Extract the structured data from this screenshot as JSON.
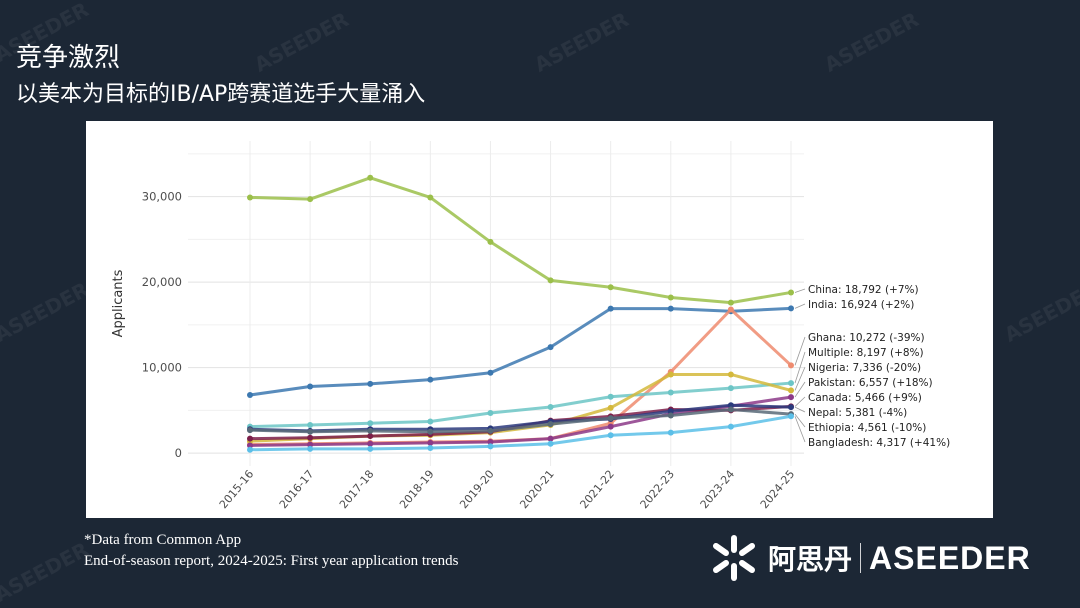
{
  "slide": {
    "title": "竞争激烈",
    "subtitle": "以美本为目标的IB/AP跨赛道选手大量涌入"
  },
  "footnote": {
    "line1": "*Data from Common App",
    "line2": " End-of-season report, 2024-2025: First year application trends"
  },
  "brand": {
    "name_cn": "阿思丹",
    "name_en": "ASEEDER",
    "logo_icon": "asterisk-burst-icon"
  },
  "colors": {
    "background": "#1c2735",
    "panel": "#ffffff",
    "grid": "#e6e6e6",
    "axis_text": "#4d4d4d"
  },
  "chart_data": {
    "type": "line",
    "ylabel": "Applicants",
    "xlabel": "",
    "ylim": [
      -1500,
      36500
    ],
    "yticks": [
      0,
      10000,
      20000,
      30000
    ],
    "ytick_labels": [
      "0",
      "10,000",
      "20,000",
      "30,000"
    ],
    "grid": true,
    "categories": [
      "2015-16",
      "2016-17",
      "2017-18",
      "2018-19",
      "2019-20",
      "2020-21",
      "2021-22",
      "2022-23",
      "2023-24",
      "2024-25"
    ],
    "series": [
      {
        "name": "China",
        "label": "China: 18,792 (+7%)",
        "color": "#9bbf4a",
        "values": [
          29900,
          29700,
          32200,
          29900,
          24700,
          20200,
          19400,
          18200,
          17600,
          18792
        ]
      },
      {
        "name": "India",
        "label": "India: 16,924 (+2%)",
        "color": "#3c78b0",
        "values": [
          6800,
          7800,
          8100,
          8600,
          9400,
          12400,
          16900,
          16900,
          16600,
          16924
        ]
      },
      {
        "name": "Ghana",
        "label": "Ghana: 10,272 (-39%)",
        "color": "#ee8b6f",
        "values": [
          1000,
          1100,
          1200,
          1300,
          1400,
          1700,
          3500,
          9500,
          16800,
          10272
        ]
      },
      {
        "name": "Multiple",
        "label": "Multiple: 8,197 (+8%)",
        "color": "#6cc5c6",
        "values": [
          3100,
          3300,
          3500,
          3700,
          4700,
          5400,
          6600,
          7100,
          7600,
          8197
        ]
      },
      {
        "name": "Nigeria",
        "label": "Nigeria: 7,336 (-20%)",
        "color": "#d4b83b",
        "values": [
          1400,
          1700,
          2000,
          2100,
          2400,
          3300,
          5300,
          9200,
          9200,
          7336
        ]
      },
      {
        "name": "Pakistan",
        "label": "Pakistan: 6,557 (+18%)",
        "color": "#8c3a88",
        "values": [
          900,
          1000,
          1100,
          1200,
          1300,
          1700,
          3100,
          4600,
          5500,
          6557
        ]
      },
      {
        "name": "Canada",
        "label": "Canada: 5,466 (+9%)",
        "color": "#7c1f4a",
        "values": [
          1700,
          1800,
          2000,
          2200,
          2500,
          3800,
          4300,
          5100,
          5000,
          5466
        ]
      },
      {
        "name": "Nepal",
        "label": "Nepal: 5,381 (-4%)",
        "color": "#2b3a7c",
        "values": [
          2800,
          2600,
          2800,
          2800,
          2900,
          3700,
          4000,
          4900,
          5600,
          5381
        ]
      },
      {
        "name": "Ethiopia",
        "label": "Ethiopia: 4,561 (-10%)",
        "color": "#586a78",
        "values": [
          2700,
          2500,
          2600,
          2500,
          2600,
          3400,
          4100,
          4400,
          5100,
          4561
        ]
      },
      {
        "name": "Bangladesh",
        "label": "Bangladesh: 4,317 (+41%)",
        "color": "#5bbfe8",
        "values": [
          400,
          500,
          500,
          600,
          800,
          1100,
          2100,
          2400,
          3100,
          4317
        ]
      }
    ]
  }
}
